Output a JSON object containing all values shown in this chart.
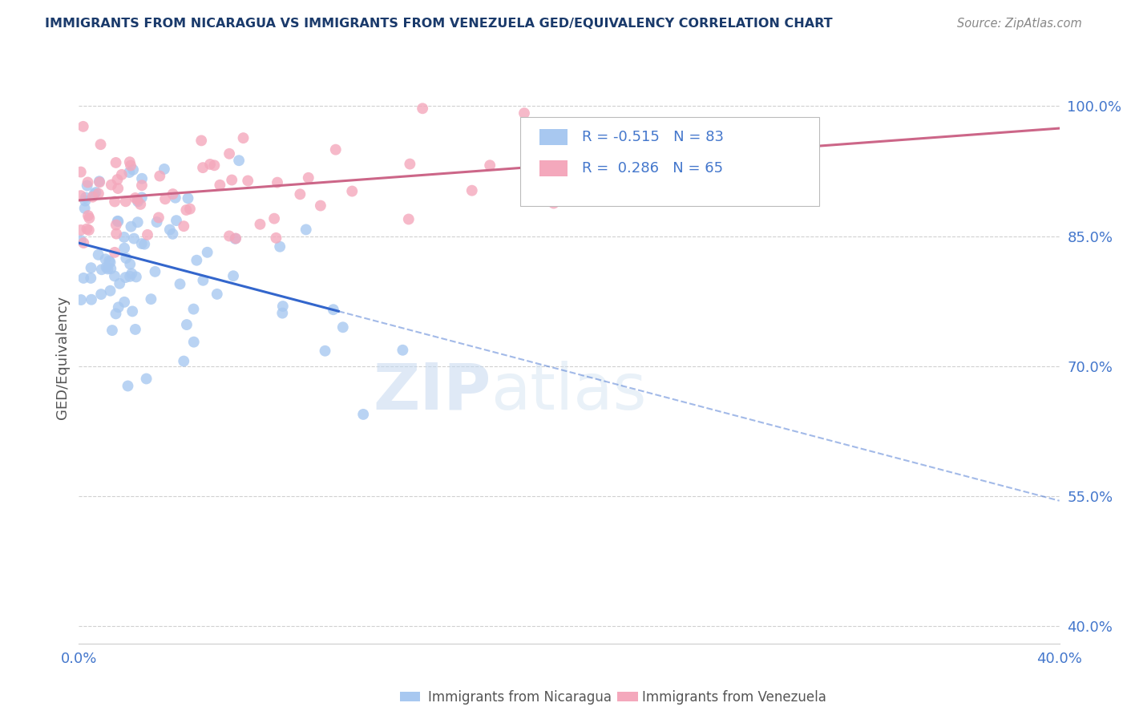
{
  "title": "IMMIGRANTS FROM NICARAGUA VS IMMIGRANTS FROM VENEZUELA GED/EQUIVALENCY CORRELATION CHART",
  "source": "Source: ZipAtlas.com",
  "ylabel": "GED/Equivalency",
  "xlim": [
    0.0,
    0.52
  ],
  "ylim": [
    0.38,
    1.04
  ],
  "yticks": [
    0.4,
    0.55,
    0.7,
    0.85,
    1.0
  ],
  "ytick_labels": [
    "40.0%",
    "55.0%",
    "70.0%",
    "85.0%",
    "100.0%"
  ],
  "nicaragua_color": "#a8c8f0",
  "venezuela_color": "#f4a8bc",
  "nicaragua_line_color": "#3366cc",
  "venezuela_line_color": "#cc6688",
  "legend_r_nicaragua": "R = -0.515",
  "legend_n_nicaragua": "N = 83",
  "legend_r_venezuela": "R =  0.286",
  "legend_n_venezuela": "N = 65",
  "legend_label_nicaragua": "Immigrants from Nicaragua",
  "legend_label_venezuela": "Immigrants from Venezuela",
  "watermark_zip": "ZIP",
  "watermark_atlas": "atlas",
  "background_color": "#ffffff",
  "grid_color": "#d0d0d0",
  "title_color": "#1a3a6b",
  "axis_label_color": "#4477cc",
  "ylabel_color": "#555555"
}
